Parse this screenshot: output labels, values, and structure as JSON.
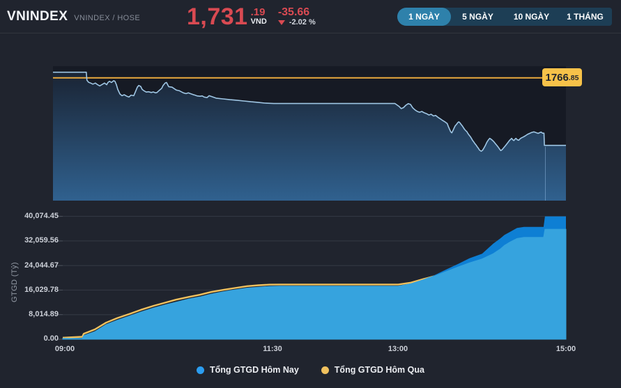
{
  "header": {
    "symbol": "VNINDEX",
    "subtitle": "VNINDEX / HOSE",
    "price_int": "1,731",
    "price_dec": ".19",
    "currency": "VND",
    "change": "-35.66",
    "change_pct": "-2.02 %"
  },
  "tabs": [
    {
      "label": "1 NGÀY",
      "active": true
    },
    {
      "label": "5 NGÀY",
      "active": false
    },
    {
      "label": "10 NGÀY",
      "active": false
    },
    {
      "label": "1 THÁNG",
      "active": false
    }
  ],
  "legend": [
    {
      "label": "Tổng GTGD Hôm Nay",
      "color": "#2b9df0"
    },
    {
      "label": "Tổng GTGD Hôm Qua",
      "color": "#f0c15e"
    }
  ],
  "colors": {
    "page_bg": "#20242e",
    "plot_bg": "#161a24",
    "price_line": "#9fc6e4",
    "price_area_top": "#1a2434",
    "price_area_bottom": "#30618f",
    "reference_yellow": "#eaa93d",
    "ref_label_bg": "#f7c249",
    "down_red": "#d94a52",
    "today_dark_blue": "#0e7fd4",
    "today_light_blue": "#36a3de",
    "yesterday_yellow": "#f0c15e",
    "gridline": "#343a45",
    "tick": "#4d535e",
    "tab_bar_bg": "#1d3e55",
    "tab_active_bg": "#2e81ab"
  },
  "chart_data": [
    {
      "type": "line",
      "title": "VNINDEX intraday price",
      "x_unit": "minutes from 09:00",
      "x_range": [
        0,
        360
      ],
      "y_range": [
        1702,
        1773
      ],
      "reference_line": {
        "value": 1766.85,
        "label_main": "1766",
        "label_dec": ".85"
      },
      "last_price": 1731.19,
      "volume_bars": {
        "present": true,
        "note": "tiny volume bars along chart bottom"
      },
      "series": [
        {
          "name": "VNINDEX",
          "points": [
            [
              0,
              1769.8
            ],
            [
              23.4,
              1769.8
            ],
            [
              23.8,
              1765.6
            ],
            [
              25,
              1764.5
            ],
            [
              26.4,
              1764.1
            ],
            [
              28,
              1763.5
            ],
            [
              29.8,
              1764.1
            ],
            [
              31.3,
              1763.2
            ],
            [
              32.8,
              1762.6
            ],
            [
              34.7,
              1763.4
            ],
            [
              36.2,
              1764.1
            ],
            [
              37.7,
              1763.2
            ],
            [
              38.6,
              1764.4
            ],
            [
              39.6,
              1765.0
            ],
            [
              41.1,
              1764.4
            ],
            [
              42.6,
              1765.3
            ],
            [
              43.5,
              1765.0
            ],
            [
              44.5,
              1763.2
            ],
            [
              45.5,
              1760.7
            ],
            [
              47,
              1758.3
            ],
            [
              48.4,
              1757.4
            ],
            [
              50,
              1757.9
            ],
            [
              51.9,
              1757.1
            ],
            [
              53.3,
              1756.7
            ],
            [
              54.8,
              1757.7
            ],
            [
              56.7,
              1757.4
            ],
            [
              58.2,
              1760.1
            ],
            [
              59.2,
              1761.9
            ],
            [
              60.2,
              1762.8
            ],
            [
              61.6,
              1762.3
            ],
            [
              62.6,
              1760.7
            ],
            [
              64.1,
              1759.9
            ],
            [
              65.5,
              1759.3
            ],
            [
              67,
              1759.5
            ],
            [
              69,
              1759.1
            ],
            [
              70.4,
              1759.4
            ],
            [
              71.9,
              1758.9
            ],
            [
              73,
              1759.1
            ],
            [
              74.4,
              1760.1
            ],
            [
              76.3,
              1761.3
            ],
            [
              77.3,
              1762.8
            ],
            [
              78.7,
              1764.1
            ],
            [
              79.7,
              1764.4
            ],
            [
              81.2,
              1762.2
            ],
            [
              83.6,
              1761.9
            ],
            [
              85.1,
              1761.1
            ],
            [
              86.6,
              1760.4
            ],
            [
              88.5,
              1760.1
            ],
            [
              90,
              1759.5
            ],
            [
              91.5,
              1758.9
            ],
            [
              93.4,
              1758.5
            ],
            [
              95,
              1758.9
            ],
            [
              96.4,
              1758.5
            ],
            [
              98.3,
              1758.0
            ],
            [
              99.8,
              1757.7
            ],
            [
              101.2,
              1757.3
            ],
            [
              103.2,
              1757.1
            ],
            [
              104.7,
              1757.3
            ],
            [
              106.1,
              1756.7
            ],
            [
              108.1,
              1756.4
            ],
            [
              109.6,
              1757.4
            ],
            [
              114.5,
              1756.1
            ],
            [
              119.4,
              1755.7
            ],
            [
              124.2,
              1755.3
            ],
            [
              129.1,
              1755.0
            ],
            [
              134,
              1754.6
            ],
            [
              139,
              1754.2
            ],
            [
              143.8,
              1753.9
            ],
            [
              148.7,
              1753.5
            ],
            [
              155,
              1753.3
            ],
            [
              240,
              1753.3
            ],
            [
              242.8,
              1751.8
            ],
            [
              244.4,
              1750.6
            ],
            [
              246,
              1751.1
            ],
            [
              247.7,
              1752.4
            ],
            [
              249.3,
              1753.2
            ],
            [
              250.9,
              1752.8
            ],
            [
              252.5,
              1751.0
            ],
            [
              254.1,
              1749.9
            ],
            [
              255.7,
              1749.1
            ],
            [
              257.3,
              1748.7
            ],
            [
              258.9,
              1749.1
            ],
            [
              260.5,
              1748.4
            ],
            [
              262.2,
              1747.9
            ],
            [
              263.8,
              1747.2
            ],
            [
              265.4,
              1747.6
            ],
            [
              267,
              1746.7
            ],
            [
              268.6,
              1747.0
            ],
            [
              270.2,
              1746.0
            ],
            [
              271.8,
              1745.2
            ],
            [
              273.5,
              1744.3
            ],
            [
              275.1,
              1743.6
            ],
            [
              276.7,
              1742.7
            ],
            [
              277.5,
              1741.1
            ],
            [
              278.3,
              1739.7
            ],
            [
              279.1,
              1738.4
            ],
            [
              279.9,
              1737.8
            ],
            [
              280.7,
              1739.0
            ],
            [
              281.5,
              1740.3
            ],
            [
              282.3,
              1741.5
            ],
            [
              283.2,
              1742.3
            ],
            [
              284,
              1743.1
            ],
            [
              284.8,
              1743.6
            ],
            [
              285.6,
              1743.1
            ],
            [
              286.4,
              1742.3
            ],
            [
              287.2,
              1741.5
            ],
            [
              288,
              1740.6
            ],
            [
              288.8,
              1739.7
            ],
            [
              289.6,
              1739.0
            ],
            [
              290.5,
              1738.4
            ],
            [
              291.2,
              1737.5
            ],
            [
              292,
              1736.6
            ],
            [
              292.9,
              1735.8
            ],
            [
              293.7,
              1734.8
            ],
            [
              294.5,
              1733.8
            ],
            [
              295.3,
              1733.0
            ],
            [
              296.1,
              1732.1
            ],
            [
              296.9,
              1731.4
            ],
            [
              297.7,
              1730.5
            ],
            [
              298.5,
              1729.7
            ],
            [
              299.3,
              1728.7
            ],
            [
              300.5,
              1728.1
            ],
            [
              301.5,
              1728.6
            ],
            [
              302.5,
              1729.8
            ],
            [
              303.5,
              1731.2
            ],
            [
              304.5,
              1732.8
            ],
            [
              305.5,
              1734.0
            ],
            [
              306.5,
              1734.9
            ],
            [
              307.5,
              1734.4
            ],
            [
              308.5,
              1733.8
            ],
            [
              309.5,
              1733.0
            ],
            [
              310.5,
              1732.1
            ],
            [
              311.5,
              1731.2
            ],
            [
              312.5,
              1730.2
            ],
            [
              313.5,
              1729.2
            ],
            [
              314.2,
              1728.4
            ],
            [
              315.2,
              1728.9
            ],
            [
              316.2,
              1729.8
            ],
            [
              317.2,
              1730.7
            ],
            [
              318.2,
              1731.6
            ],
            [
              319.2,
              1732.6
            ],
            [
              320.2,
              1733.6
            ],
            [
              321.2,
              1734.4
            ],
            [
              321.9,
              1734.9
            ],
            [
              322.6,
              1734.2
            ],
            [
              323.4,
              1733.7
            ],
            [
              324.1,
              1734.3
            ],
            [
              324.9,
              1734.9
            ],
            [
              325.9,
              1734.1
            ],
            [
              326.9,
              1733.9
            ],
            [
              327.9,
              1734.7
            ],
            [
              328.9,
              1735.2
            ],
            [
              330,
              1735.6
            ],
            [
              331.5,
              1736.2
            ],
            [
              333,
              1737.0
            ],
            [
              334.5,
              1737.5
            ],
            [
              336,
              1738.0
            ],
            [
              337.5,
              1738.3
            ],
            [
              339,
              1737.9
            ],
            [
              340.5,
              1737.5
            ],
            [
              341.6,
              1737.9
            ],
            [
              342.6,
              1738.2
            ],
            [
              343.6,
              1737.6
            ],
            [
              344.6,
              1737.6
            ],
            [
              344.9,
              1731.19
            ],
            [
              360,
              1731.19
            ]
          ]
        }
      ]
    },
    {
      "type": "area",
      "title": "Cumulative trading value",
      "ylabel": "GTGD (Tỷ)",
      "x_unit": "minutes from 09:00",
      "x_range": [
        0,
        360
      ],
      "y_range": [
        0,
        40074.45
      ],
      "x_ticks": [
        {
          "min": 0,
          "label": "09:00"
        },
        {
          "min": 150,
          "label": "11:30"
        },
        {
          "min": 240,
          "label": "13:00"
        },
        {
          "min": 360,
          "label": "15:00"
        }
      ],
      "y_ticks": [
        {
          "value": 40074.45,
          "label": "40,074.45"
        },
        {
          "value": 32059.56,
          "label": "32,059.56"
        },
        {
          "value": 24044.67,
          "label": "24,044.67"
        },
        {
          "value": 16029.78,
          "label": "16,029.78"
        },
        {
          "value": 8014.89,
          "label": "8,014.89"
        },
        {
          "value": 0,
          "label": "0.00"
        }
      ],
      "x": [
        0,
        14,
        15,
        23,
        31,
        39,
        48,
        56,
        65,
        73,
        81,
        90,
        98,
        106,
        115,
        123,
        132,
        140,
        148,
        155,
        240,
        249,
        258,
        262,
        266,
        275,
        283,
        291,
        300,
        308,
        313,
        316,
        320,
        325,
        330,
        344,
        345,
        360
      ],
      "series": [
        {
          "name": "Tổng GTGD Hôm Nay",
          "color": "#0e7fd4",
          "values": [
            300,
            300,
            1200,
            2500,
            4800,
            6200,
            7600,
            8900,
            10200,
            11200,
            12100,
            13100,
            13800,
            14700,
            15500,
            16100,
            16700,
            17000,
            17250,
            17300,
            17300,
            18100,
            19400,
            20100,
            20900,
            22900,
            24600,
            26400,
            27900,
            31200,
            32850,
            34000,
            35000,
            36300,
            36650,
            36650,
            40074,
            40074
          ]
        },
        {
          "name": "Tổng GTGD Hôm Qua",
          "color": "#f0c15e",
          "values": [
            500,
            800,
            1800,
            3200,
            5400,
            6900,
            8300,
            9600,
            10900,
            11900,
            12900,
            13800,
            14500,
            15400,
            16100,
            16700,
            17300,
            17600,
            17800,
            17850,
            17850,
            18450,
            19600,
            20100,
            20600,
            22200,
            23600,
            24900,
            26200,
            27900,
            29400,
            30600,
            31700,
            32850,
            33235,
            33235,
            35880,
            35880
          ]
        }
      ]
    }
  ]
}
